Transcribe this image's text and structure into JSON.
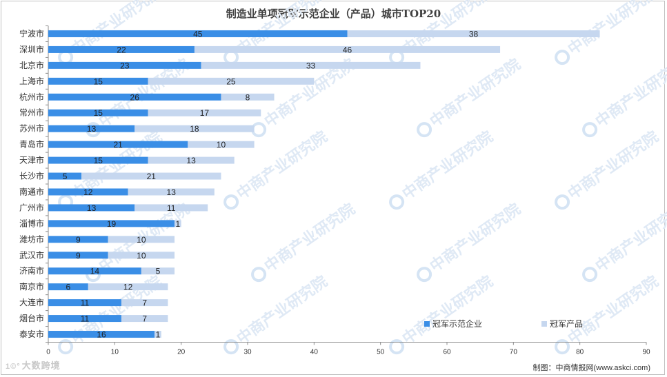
{
  "page": {
    "credit": "制图：中商情报网(www.askci.com)",
    "brand_mark": "1©°",
    "brand_text": "大数跨境",
    "watermark_text": "中商产业研究院"
  },
  "chart_data": {
    "type": "bar",
    "orientation": "horizontal",
    "stacked": true,
    "title": "制造业单项冠军示范企业（产品）城市TOP20",
    "xlabel": "",
    "ylabel": "",
    "xlim": [
      0,
      90
    ],
    "xticks": [
      0,
      10,
      20,
      30,
      40,
      50,
      60,
      70,
      80,
      90
    ],
    "grid": false,
    "legend_position": "bottom-right",
    "categories": [
      "宁波市",
      "深圳市",
      "北京市",
      "上海市",
      "杭州市",
      "常州市",
      "苏州市",
      "青岛市",
      "天津市",
      "长沙市",
      "南通市",
      "广州市",
      "淄博市",
      "潍坊市",
      "武汉市",
      "济南市",
      "南京市",
      "大连市",
      "烟台市",
      "泰安市"
    ],
    "series": [
      {
        "name": "冠军示范企业",
        "color": "#3a8ee6",
        "values": [
          45,
          22,
          23,
          15,
          26,
          15,
          13,
          21,
          15,
          5,
          12,
          13,
          19,
          9,
          9,
          14,
          6,
          11,
          11,
          16
        ]
      },
      {
        "name": "冠军产品",
        "color": "#c6d7ef",
        "values": [
          38,
          46,
          33,
          25,
          8,
          17,
          18,
          10,
          13,
          21,
          13,
          11,
          1,
          10,
          10,
          5,
          12,
          7,
          7,
          1
        ]
      }
    ]
  }
}
